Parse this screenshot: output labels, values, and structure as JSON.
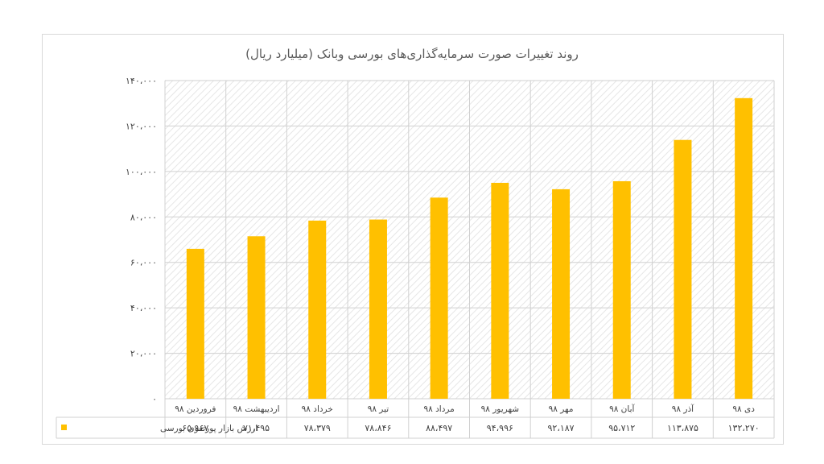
{
  "chart_data": {
    "type": "bar",
    "title": "روند تغییرات صورت سرمایه‌گذاری‌های بورسی وبانک (میلیارد ریال)",
    "categories": [
      "فروردین ۹۸",
      "اردیبهشت ۹۸",
      "خرداد ۹۸",
      "تیر ۹۸",
      "مرداد ۹۸",
      "شهریور ۹۸",
      "مهر ۹۸",
      "آبان ۹۸",
      "آذر ۹۸",
      "دی ۹۸"
    ],
    "series": [
      {
        "name": "ارزش بازار پورتفوی بورسی",
        "values": [
          65967,
          71495,
          78379,
          78846,
          88497,
          94996,
          92187,
          95712,
          113875,
          132270
        ],
        "value_labels": [
          "۶۵،۹۶۷",
          "۷۱،۴۹۵",
          "۷۸،۳۷۹",
          "۷۸،۸۴۶",
          "۸۸،۴۹۷",
          "۹۴،۹۹۶",
          "۹۲،۱۸۷",
          "۹۵،۷۱۲",
          "۱۱۳،۸۷۵",
          "۱۳۲،۲۷۰"
        ],
        "color": "#FFC000"
      }
    ],
    "ylim": [
      0,
      140000
    ],
    "yticks": [
      0,
      20000,
      40000,
      60000,
      80000,
      100000,
      120000,
      140000
    ],
    "ytick_labels": [
      "۰",
      "۲۰،۰۰۰",
      "۴۰،۰۰۰",
      "۶۰،۰۰۰",
      "۸۰،۰۰۰",
      "۱۰۰،۰۰۰",
      "۱۲۰،۰۰۰",
      "۱۴۰،۰۰۰"
    ],
    "grid": true,
    "legend": "data-table"
  }
}
